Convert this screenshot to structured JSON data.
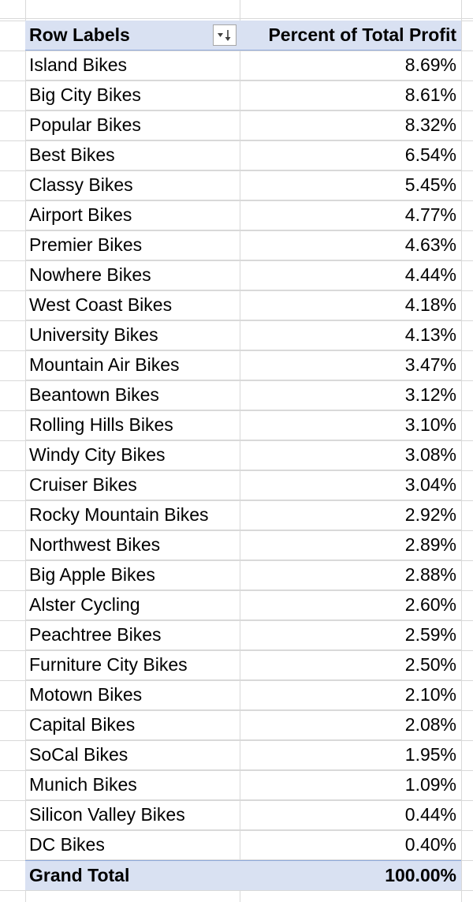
{
  "pivot": {
    "header": {
      "row_labels": "Row Labels",
      "value_header": "Percent of Total Profit",
      "filter_icon": "sort-descending-filter-icon"
    },
    "rows": [
      {
        "label": "Island Bikes",
        "value": "8.69%"
      },
      {
        "label": "Big City Bikes",
        "value": "8.61%"
      },
      {
        "label": "Popular Bikes",
        "value": "8.32%"
      },
      {
        "label": "Best Bikes",
        "value": "6.54%"
      },
      {
        "label": "Classy Bikes",
        "value": "5.45%"
      },
      {
        "label": "Airport Bikes",
        "value": "4.77%"
      },
      {
        "label": "Premier Bikes",
        "value": "4.63%"
      },
      {
        "label": "Nowhere Bikes",
        "value": "4.44%"
      },
      {
        "label": "West Coast Bikes",
        "value": "4.18%"
      },
      {
        "label": "University Bikes",
        "value": "4.13%"
      },
      {
        "label": "Mountain Air Bikes",
        "value": "3.47%"
      },
      {
        "label": "Beantown Bikes",
        "value": "3.12%"
      },
      {
        "label": "Rolling Hills Bikes",
        "value": "3.10%"
      },
      {
        "label": "Windy City Bikes",
        "value": "3.08%"
      },
      {
        "label": "Cruiser Bikes",
        "value": "3.04%"
      },
      {
        "label": "Rocky Mountain Bikes",
        "value": "2.92%"
      },
      {
        "label": "Northwest Bikes",
        "value": "2.89%"
      },
      {
        "label": "Big Apple Bikes",
        "value": "2.88%"
      },
      {
        "label": "Alster Cycling",
        "value": "2.60%"
      },
      {
        "label": "Peachtree Bikes",
        "value": "2.59%"
      },
      {
        "label": "Furniture City Bikes",
        "value": "2.50%"
      },
      {
        "label": "Motown Bikes",
        "value": "2.10%"
      },
      {
        "label": "Capital Bikes",
        "value": "2.08%"
      },
      {
        "label": "SoCal Bikes",
        "value": "1.95%"
      },
      {
        "label": "Munich Bikes",
        "value": "1.09%"
      },
      {
        "label": "Silicon Valley Bikes",
        "value": "0.44%"
      },
      {
        "label": "DC Bikes",
        "value": "0.40%"
      }
    ],
    "total": {
      "label": "Grand Total",
      "value": "100.00%"
    }
  },
  "colors": {
    "header_fill": "#d9e1f2",
    "header_border": "#8ea9db",
    "gridline": "#d9d9d9"
  }
}
